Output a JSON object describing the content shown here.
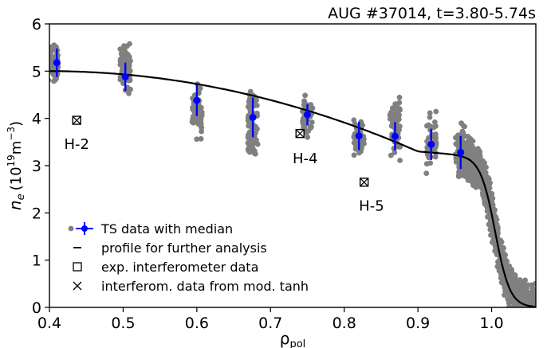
{
  "chart_data": {
    "type": "scatter",
    "title": "AUG #37014, t=3.80-5.74s",
    "xlabel": "ρ",
    "xlabel_sub": "pol",
    "ylabel_main": "n",
    "ylabel_sub": "e",
    "ylabel_unit_open": "(10",
    "ylabel_unit_exp": "19",
    "ylabel_unit_mid": "m",
    "ylabel_unit_exp2": "−3",
    "ylabel_unit_close": ")",
    "xlim": [
      0.4,
      1.06
    ],
    "ylim": [
      0,
      6
    ],
    "x_ticks": [
      {
        "v": 0.4,
        "label": "0.4"
      },
      {
        "v": 0.5,
        "label": "0.5"
      },
      {
        "v": 0.6,
        "label": "0.6"
      },
      {
        "v": 0.7,
        "label": "0.7"
      },
      {
        "v": 0.8,
        "label": "0.8"
      },
      {
        "v": 0.9,
        "label": "0.9"
      },
      {
        "v": 1.0,
        "label": "1.0"
      }
    ],
    "y_ticks": [
      {
        "v": 0,
        "label": "0"
      },
      {
        "v": 1,
        "label": "1"
      },
      {
        "v": 2,
        "label": "2"
      },
      {
        "v": 3,
        "label": "3"
      },
      {
        "v": 4,
        "label": "4"
      },
      {
        "v": 5,
        "label": "5"
      },
      {
        "v": 6,
        "label": "6"
      }
    ],
    "grid": false,
    "legend_position": "lower-left",
    "colors": {
      "ts_raw": "#808080",
      "median": "#0000ff",
      "profile": "#000000"
    },
    "ts_clusters": [
      {
        "x": 0.405,
        "ymin": 4.6,
        "ymax": 5.7,
        "n": 60
      },
      {
        "x": 0.503,
        "ymin": 4.35,
        "ymax": 5.75,
        "n": 70
      },
      {
        "x": 0.6,
        "ymin": 3.45,
        "ymax": 4.9,
        "n": 70
      },
      {
        "x": 0.676,
        "ymin": 2.95,
        "ymax": 4.95,
        "n": 80
      },
      {
        "x": 0.75,
        "ymin": 3.35,
        "ymax": 4.6,
        "n": 60
      },
      {
        "x": 0.82,
        "ymin": 3.0,
        "ymax": 4.15,
        "n": 60
      },
      {
        "x": 0.869,
        "ymin": 2.95,
        "ymax": 4.75,
        "n": 60
      },
      {
        "x": 0.918,
        "ymin": 2.6,
        "ymax": 4.3,
        "n": 50
      },
      {
        "x": 0.958,
        "ymin": 2.65,
        "ymax": 4.1,
        "n": 40
      }
    ],
    "ts_median": [
      {
        "x": 0.41,
        "y": 5.18,
        "err": 0.3
      },
      {
        "x": 0.503,
        "y": 4.88,
        "err": 0.3
      },
      {
        "x": 0.6,
        "y": 4.38,
        "err": 0.33
      },
      {
        "x": 0.676,
        "y": 4.02,
        "err": 0.42
      },
      {
        "x": 0.75,
        "y": 4.08,
        "err": 0.22
      },
      {
        "x": 0.82,
        "y": 3.63,
        "err": 0.3
      },
      {
        "x": 0.869,
        "y": 3.62,
        "err": 0.3
      },
      {
        "x": 0.918,
        "y": 3.45,
        "err": 0.33
      },
      {
        "x": 0.958,
        "y": 3.28,
        "err": 0.35
      }
    ],
    "profile_params": {
      "core": 5.0,
      "slope": 1.65,
      "x_ped": 0.9,
      "ped_top": 3.3,
      "x_edge": 1.005,
      "width": 0.02
    },
    "interferometer": [
      {
        "x": 0.437,
        "y": 3.96,
        "label": "H-2",
        "label_x": 0.42,
        "label_y": 3.35
      },
      {
        "x": 0.74,
        "y": 3.68,
        "label": "H-4",
        "label_x": 0.73,
        "label_y": 3.05
      },
      {
        "x": 0.827,
        "y": 2.65,
        "label": "H-5",
        "label_x": 0.82,
        "label_y": 2.05
      }
    ],
    "legend": [
      {
        "key": "ts",
        "label": "TS data with median"
      },
      {
        "key": "profile",
        "label": "profile for further analysis"
      },
      {
        "key": "exp",
        "label": "exp. interferometer data"
      },
      {
        "key": "mod",
        "label": "interferom. data from mod. tanh"
      }
    ]
  }
}
